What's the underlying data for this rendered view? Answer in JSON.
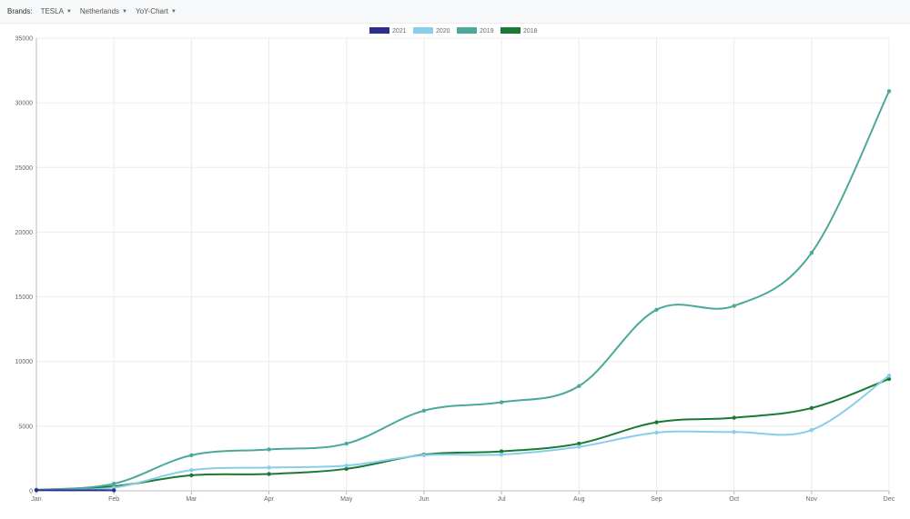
{
  "toolbar": {
    "brands_label": "Brands:",
    "brand_value": "TESLA",
    "country_value": "Netherlands",
    "view_value": "YoY-Chart",
    "caret_icon": "caret-down-icon"
  },
  "chart_data": {
    "type": "line",
    "categories": [
      "Jan",
      "Feb",
      "Mar",
      "Apr",
      "May",
      "Jun",
      "Jul",
      "Aug",
      "Sep",
      "Oct",
      "Nov",
      "Dec"
    ],
    "ylim": [
      0,
      35000
    ],
    "yticks": [
      0,
      5000,
      10000,
      15000,
      20000,
      25000,
      30000,
      35000
    ],
    "legend_position": "top-center",
    "grid": true,
    "series": [
      {
        "name": "2021",
        "color": "#2b2e8c",
        "values": [
          50,
          40,
          null,
          null,
          null,
          null,
          null,
          null,
          null,
          null,
          null,
          null
        ]
      },
      {
        "name": "2020",
        "color": "#87ceeb",
        "values": [
          60,
          250,
          1600,
          1800,
          1950,
          2750,
          2800,
          3400,
          4500,
          4550,
          4700,
          8900
        ]
      },
      {
        "name": "2019",
        "color": "#4ba89a",
        "values": [
          80,
          550,
          2750,
          3200,
          3650,
          6200,
          6850,
          8100,
          14000,
          14300,
          18400,
          30900
        ]
      },
      {
        "name": "2018",
        "color": "#1a7a33",
        "values": [
          70,
          350,
          1200,
          1300,
          1700,
          2800,
          3050,
          3650,
          5300,
          5650,
          6400,
          8650
        ]
      }
    ]
  }
}
